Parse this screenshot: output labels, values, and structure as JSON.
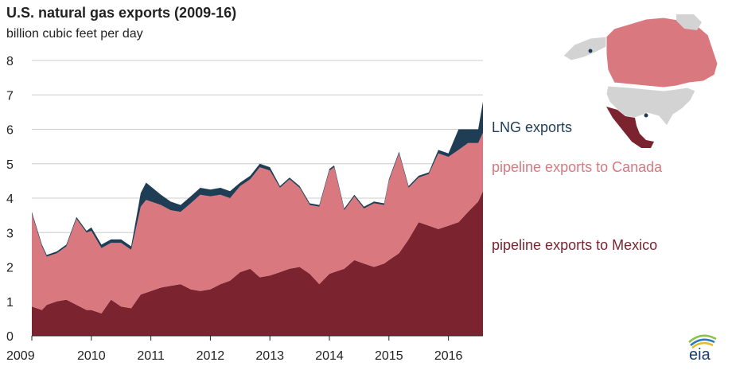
{
  "chart_data": {
    "type": "area",
    "stacked": true,
    "title": "U.S. natural gas exports (2009-16)",
    "ylabel": "billion cubic feet per day",
    "xlabel": "",
    "ylim": [
      0,
      8
    ],
    "xlim": [
      2009,
      2016.58
    ],
    "y_ticks": [
      "0",
      "1",
      "2",
      "3",
      "4",
      "5",
      "6",
      "7",
      "8"
    ],
    "x_ticks": [
      "2009",
      "2010",
      "2011",
      "2012",
      "2013",
      "2014",
      "2015",
      "2016"
    ],
    "grid": true,
    "x": [
      2009.0,
      2009.17,
      2009.25,
      2009.42,
      2009.58,
      2009.75,
      2009.92,
      2010.0,
      2010.17,
      2010.33,
      2010.5,
      2010.67,
      2010.83,
      2010.92,
      2011.17,
      2011.33,
      2011.5,
      2011.67,
      2011.83,
      2012.0,
      2012.17,
      2012.33,
      2012.5,
      2012.67,
      2012.83,
      2013.0,
      2013.17,
      2013.33,
      2013.5,
      2013.67,
      2013.83,
      2014.0,
      2014.08,
      2014.25,
      2014.42,
      2014.58,
      2014.75,
      2014.92,
      2015.0,
      2015.17,
      2015.33,
      2015.5,
      2015.67,
      2015.83,
      2016.0,
      2016.17,
      2016.33,
      2016.5,
      2016.58
    ],
    "series": [
      {
        "name": "pipeline exports to Mexico",
        "color": "#7b2430",
        "values": [
          0.85,
          0.75,
          0.9,
          1.0,
          1.05,
          0.9,
          0.75,
          0.75,
          0.65,
          1.05,
          0.85,
          0.8,
          1.2,
          1.25,
          1.4,
          1.45,
          1.5,
          1.35,
          1.3,
          1.35,
          1.5,
          1.6,
          1.85,
          1.95,
          1.7,
          1.75,
          1.85,
          1.95,
          2.0,
          1.8,
          1.5,
          1.8,
          1.85,
          1.95,
          2.2,
          2.1,
          2.0,
          2.1,
          2.2,
          2.4,
          2.8,
          3.3,
          3.2,
          3.1,
          3.2,
          3.3,
          3.6,
          3.9,
          4.2
        ]
      },
      {
        "name": "pipeline exports to Canada",
        "color": "#d9787f",
        "values": [
          2.7,
          1.85,
          1.4,
          1.4,
          1.55,
          2.5,
          2.25,
          2.3,
          1.9,
          1.65,
          1.85,
          1.7,
          2.55,
          2.7,
          2.4,
          2.2,
          2.1,
          2.5,
          2.8,
          2.7,
          2.6,
          2.4,
          2.5,
          2.6,
          3.2,
          3.05,
          2.45,
          2.6,
          2.3,
          2.0,
          2.25,
          3.0,
          3.05,
          1.7,
          1.85,
          1.6,
          1.85,
          1.7,
          2.3,
          2.9,
          1.5,
          1.3,
          1.5,
          2.2,
          2.0,
          2.1,
          2.0,
          1.7,
          1.7
        ]
      },
      {
        "name": "LNG exports",
        "color": "#1f3d55",
        "values": [
          0.05,
          0.05,
          0.05,
          0.05,
          0.05,
          0.05,
          0.05,
          0.1,
          0.1,
          0.1,
          0.1,
          0.1,
          0.4,
          0.5,
          0.3,
          0.25,
          0.2,
          0.2,
          0.2,
          0.2,
          0.2,
          0.2,
          0.1,
          0.1,
          0.1,
          0.1,
          0.05,
          0.05,
          0.05,
          0.05,
          0.05,
          0.05,
          0.05,
          0.05,
          0.05,
          0.05,
          0.05,
          0.05,
          0.05,
          0.05,
          0.05,
          0.05,
          0.05,
          0.1,
          0.1,
          0.6,
          0.4,
          0.4,
          0.9
        ]
      }
    ],
    "legend": [
      "LNG exports",
      "pipeline exports to Canada",
      "pipeline exports to Mexico"
    ]
  },
  "colors": {
    "mexico": "#7b2430",
    "canada": "#d9787f",
    "lng": "#1f3d55",
    "us": "#d3d3d3",
    "grid": "#cccccc",
    "axis": "#222222"
  },
  "logo": {
    "text": "eia"
  }
}
